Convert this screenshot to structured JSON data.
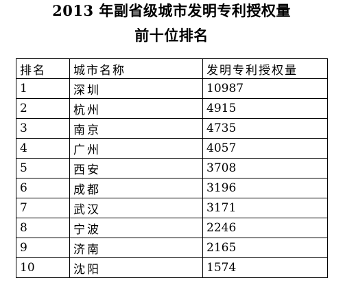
{
  "title": {
    "line1": "2013 年副省级城市发明专利授权量",
    "line2": "前十位排名"
  },
  "table": {
    "headers": {
      "rank": "排名",
      "city": "城市名称",
      "patents": "发明专利授权量"
    },
    "rows": [
      {
        "rank": "1",
        "city": "深圳",
        "patents": "10987"
      },
      {
        "rank": "2",
        "city": "杭州",
        "patents": "4915"
      },
      {
        "rank": "3",
        "city": "南京",
        "patents": "4735"
      },
      {
        "rank": "4",
        "city": "广州",
        "patents": "4057"
      },
      {
        "rank": "5",
        "city": "西安",
        "patents": "3708"
      },
      {
        "rank": "6",
        "city": "成都",
        "patents": "3196"
      },
      {
        "rank": "7",
        "city": "武汉",
        "patents": "3171"
      },
      {
        "rank": "8",
        "city": "宁波",
        "patents": "2246"
      },
      {
        "rank": "9",
        "city": "济南",
        "patents": "2165"
      },
      {
        "rank": "10",
        "city": "沈阳",
        "patents": "1574"
      }
    ]
  }
}
